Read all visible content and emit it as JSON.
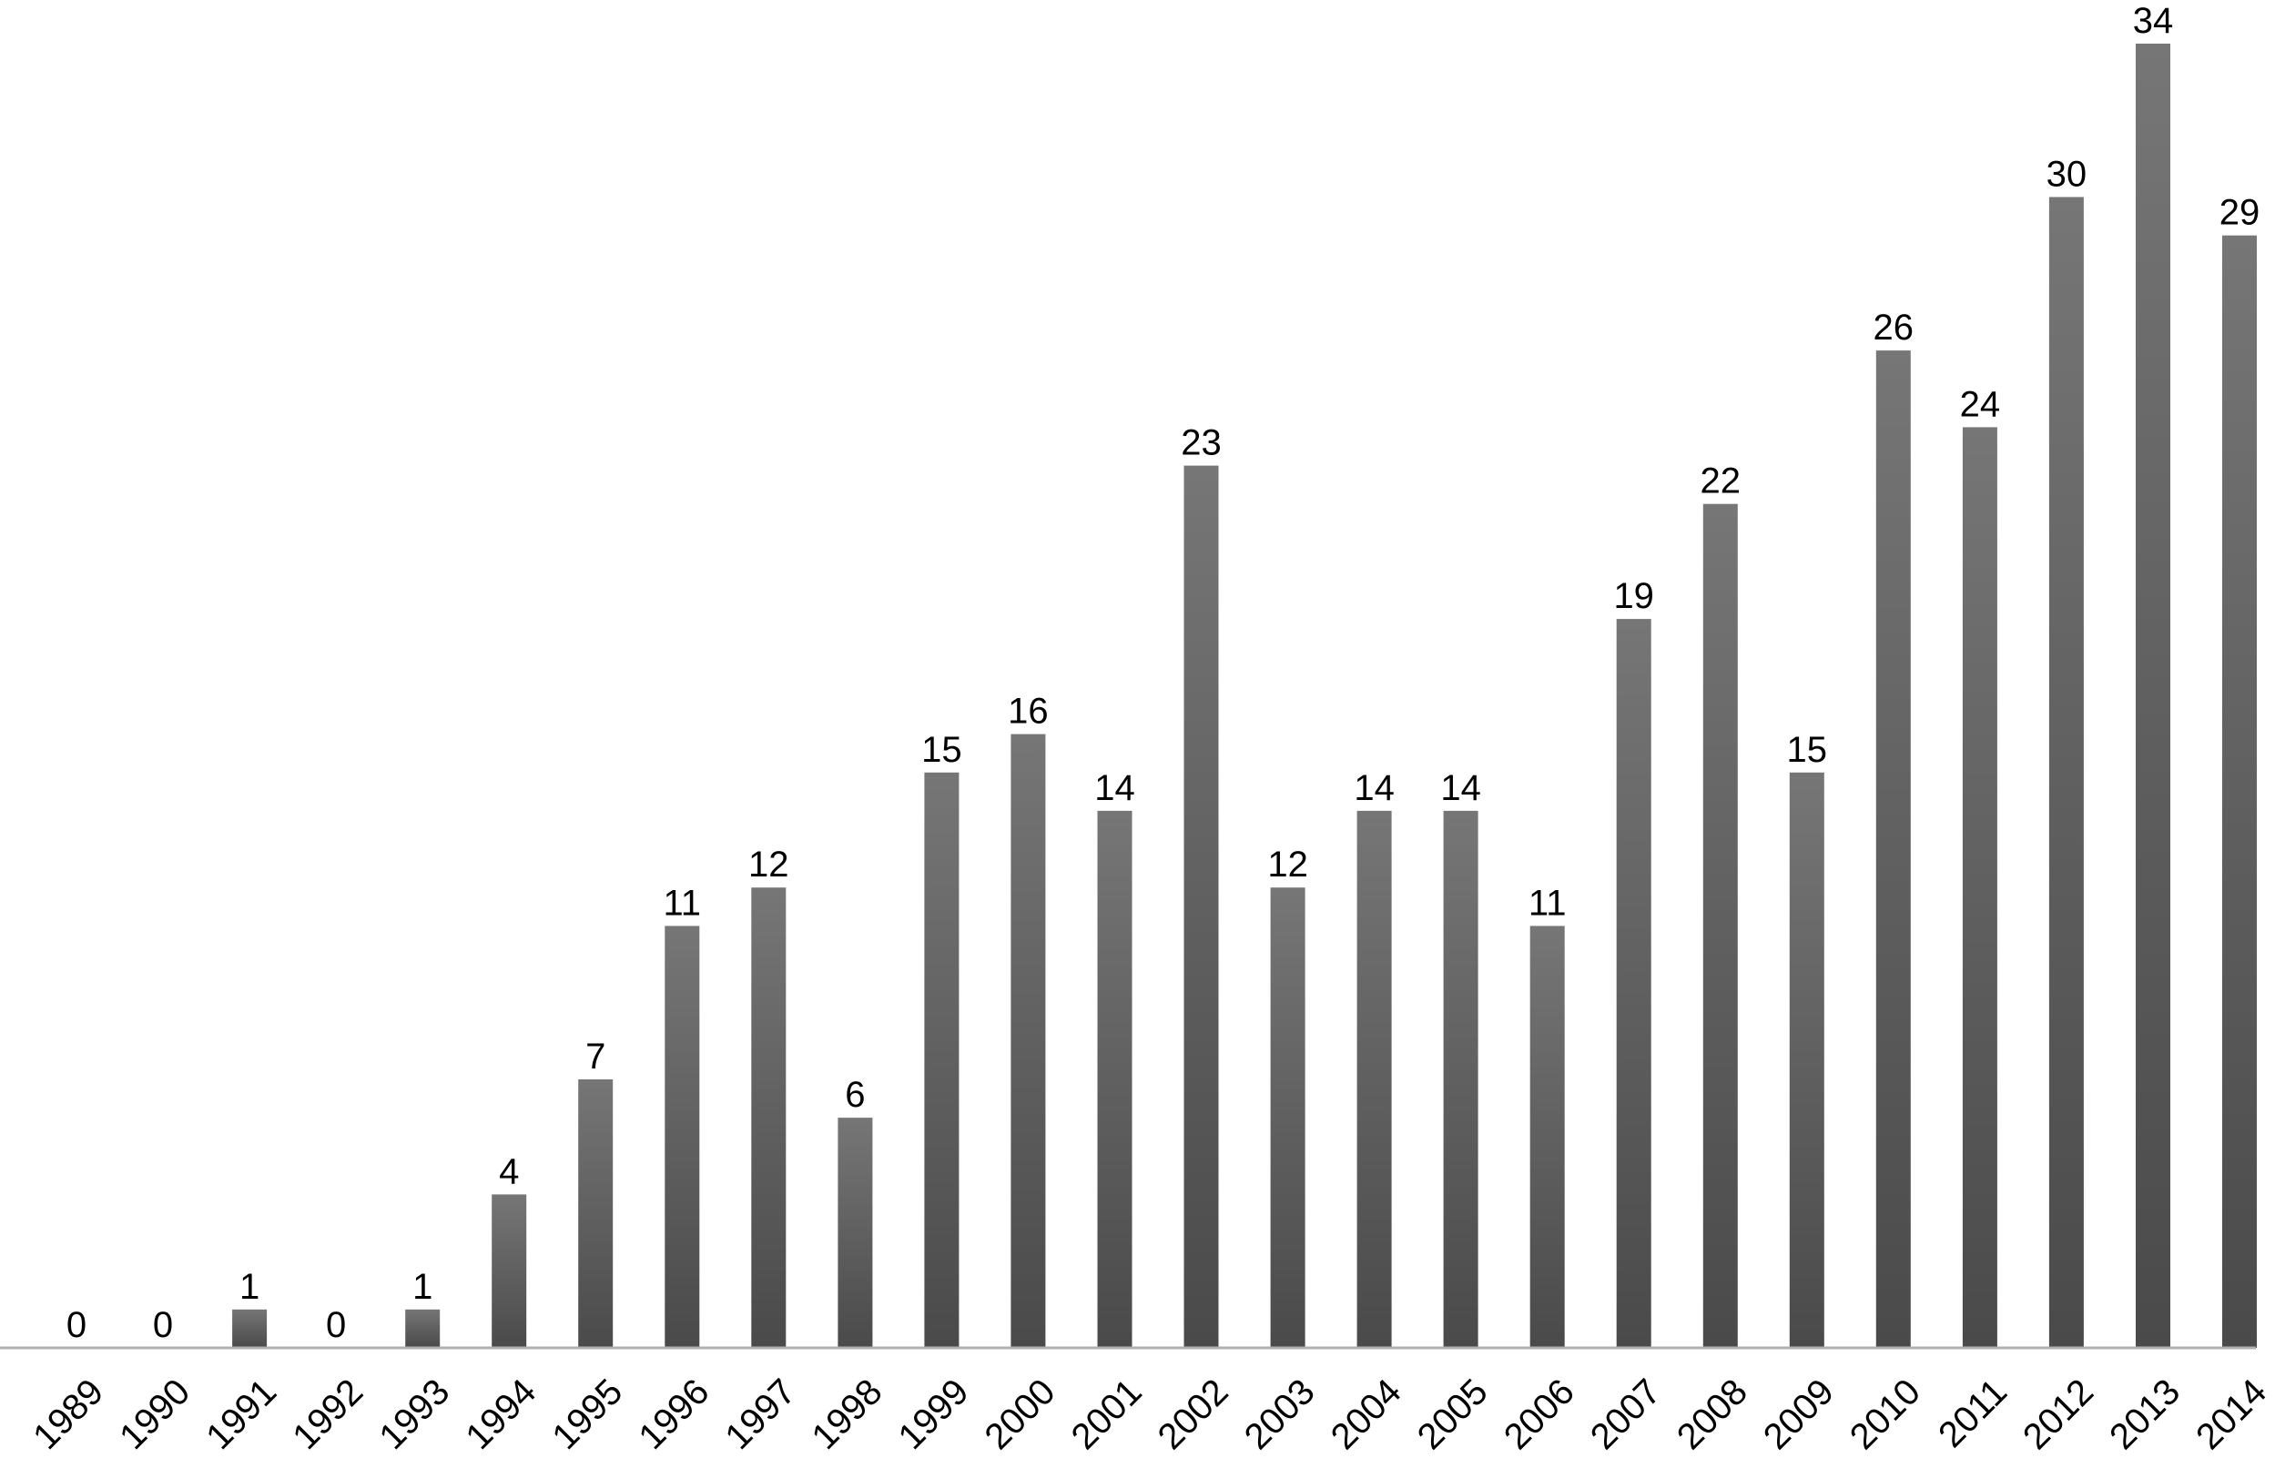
{
  "chart_data": {
    "type": "bar",
    "categories": [
      "1989",
      "1990",
      "1991",
      "1992",
      "1993",
      "1994",
      "1995",
      "1996",
      "1997",
      "1998",
      "1999",
      "2000",
      "2001",
      "2002",
      "2003",
      "2004",
      "2005",
      "2006",
      "2007",
      "2008",
      "2009",
      "2010",
      "2011",
      "2012",
      "2013",
      "2014"
    ],
    "values": [
      0,
      0,
      1,
      0,
      1,
      4,
      7,
      11,
      12,
      6,
      15,
      16,
      14,
      23,
      12,
      14,
      14,
      11,
      19,
      22,
      15,
      26,
      24,
      30,
      34,
      29
    ],
    "title": "",
    "xlabel": "",
    "ylabel": "",
    "ylim": [
      0,
      34
    ],
    "grid": false,
    "legend": "none",
    "colors": {
      "bar_top": "#767676",
      "bar_bottom": "#4a4a4a",
      "axis": "#b0b0b0"
    }
  }
}
